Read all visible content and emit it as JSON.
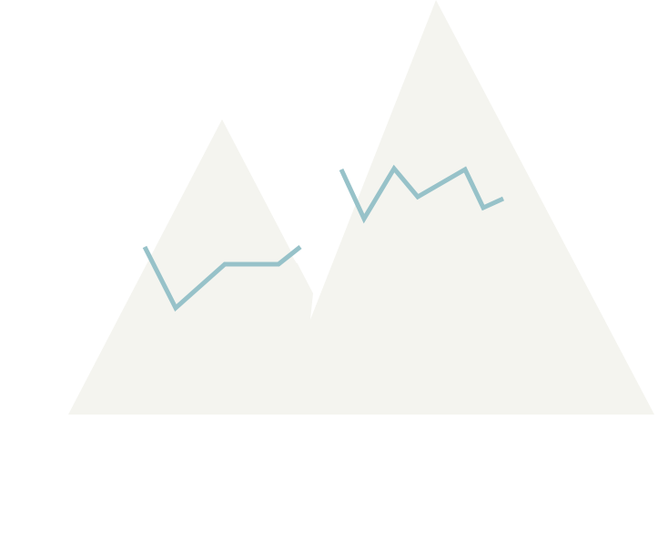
{
  "illustration": {
    "icon": "mountains-icon",
    "colors": {
      "background": "#ffffff",
      "mountain_fill": "#f4f4ef",
      "snow_line": "#97c2c9"
    }
  }
}
